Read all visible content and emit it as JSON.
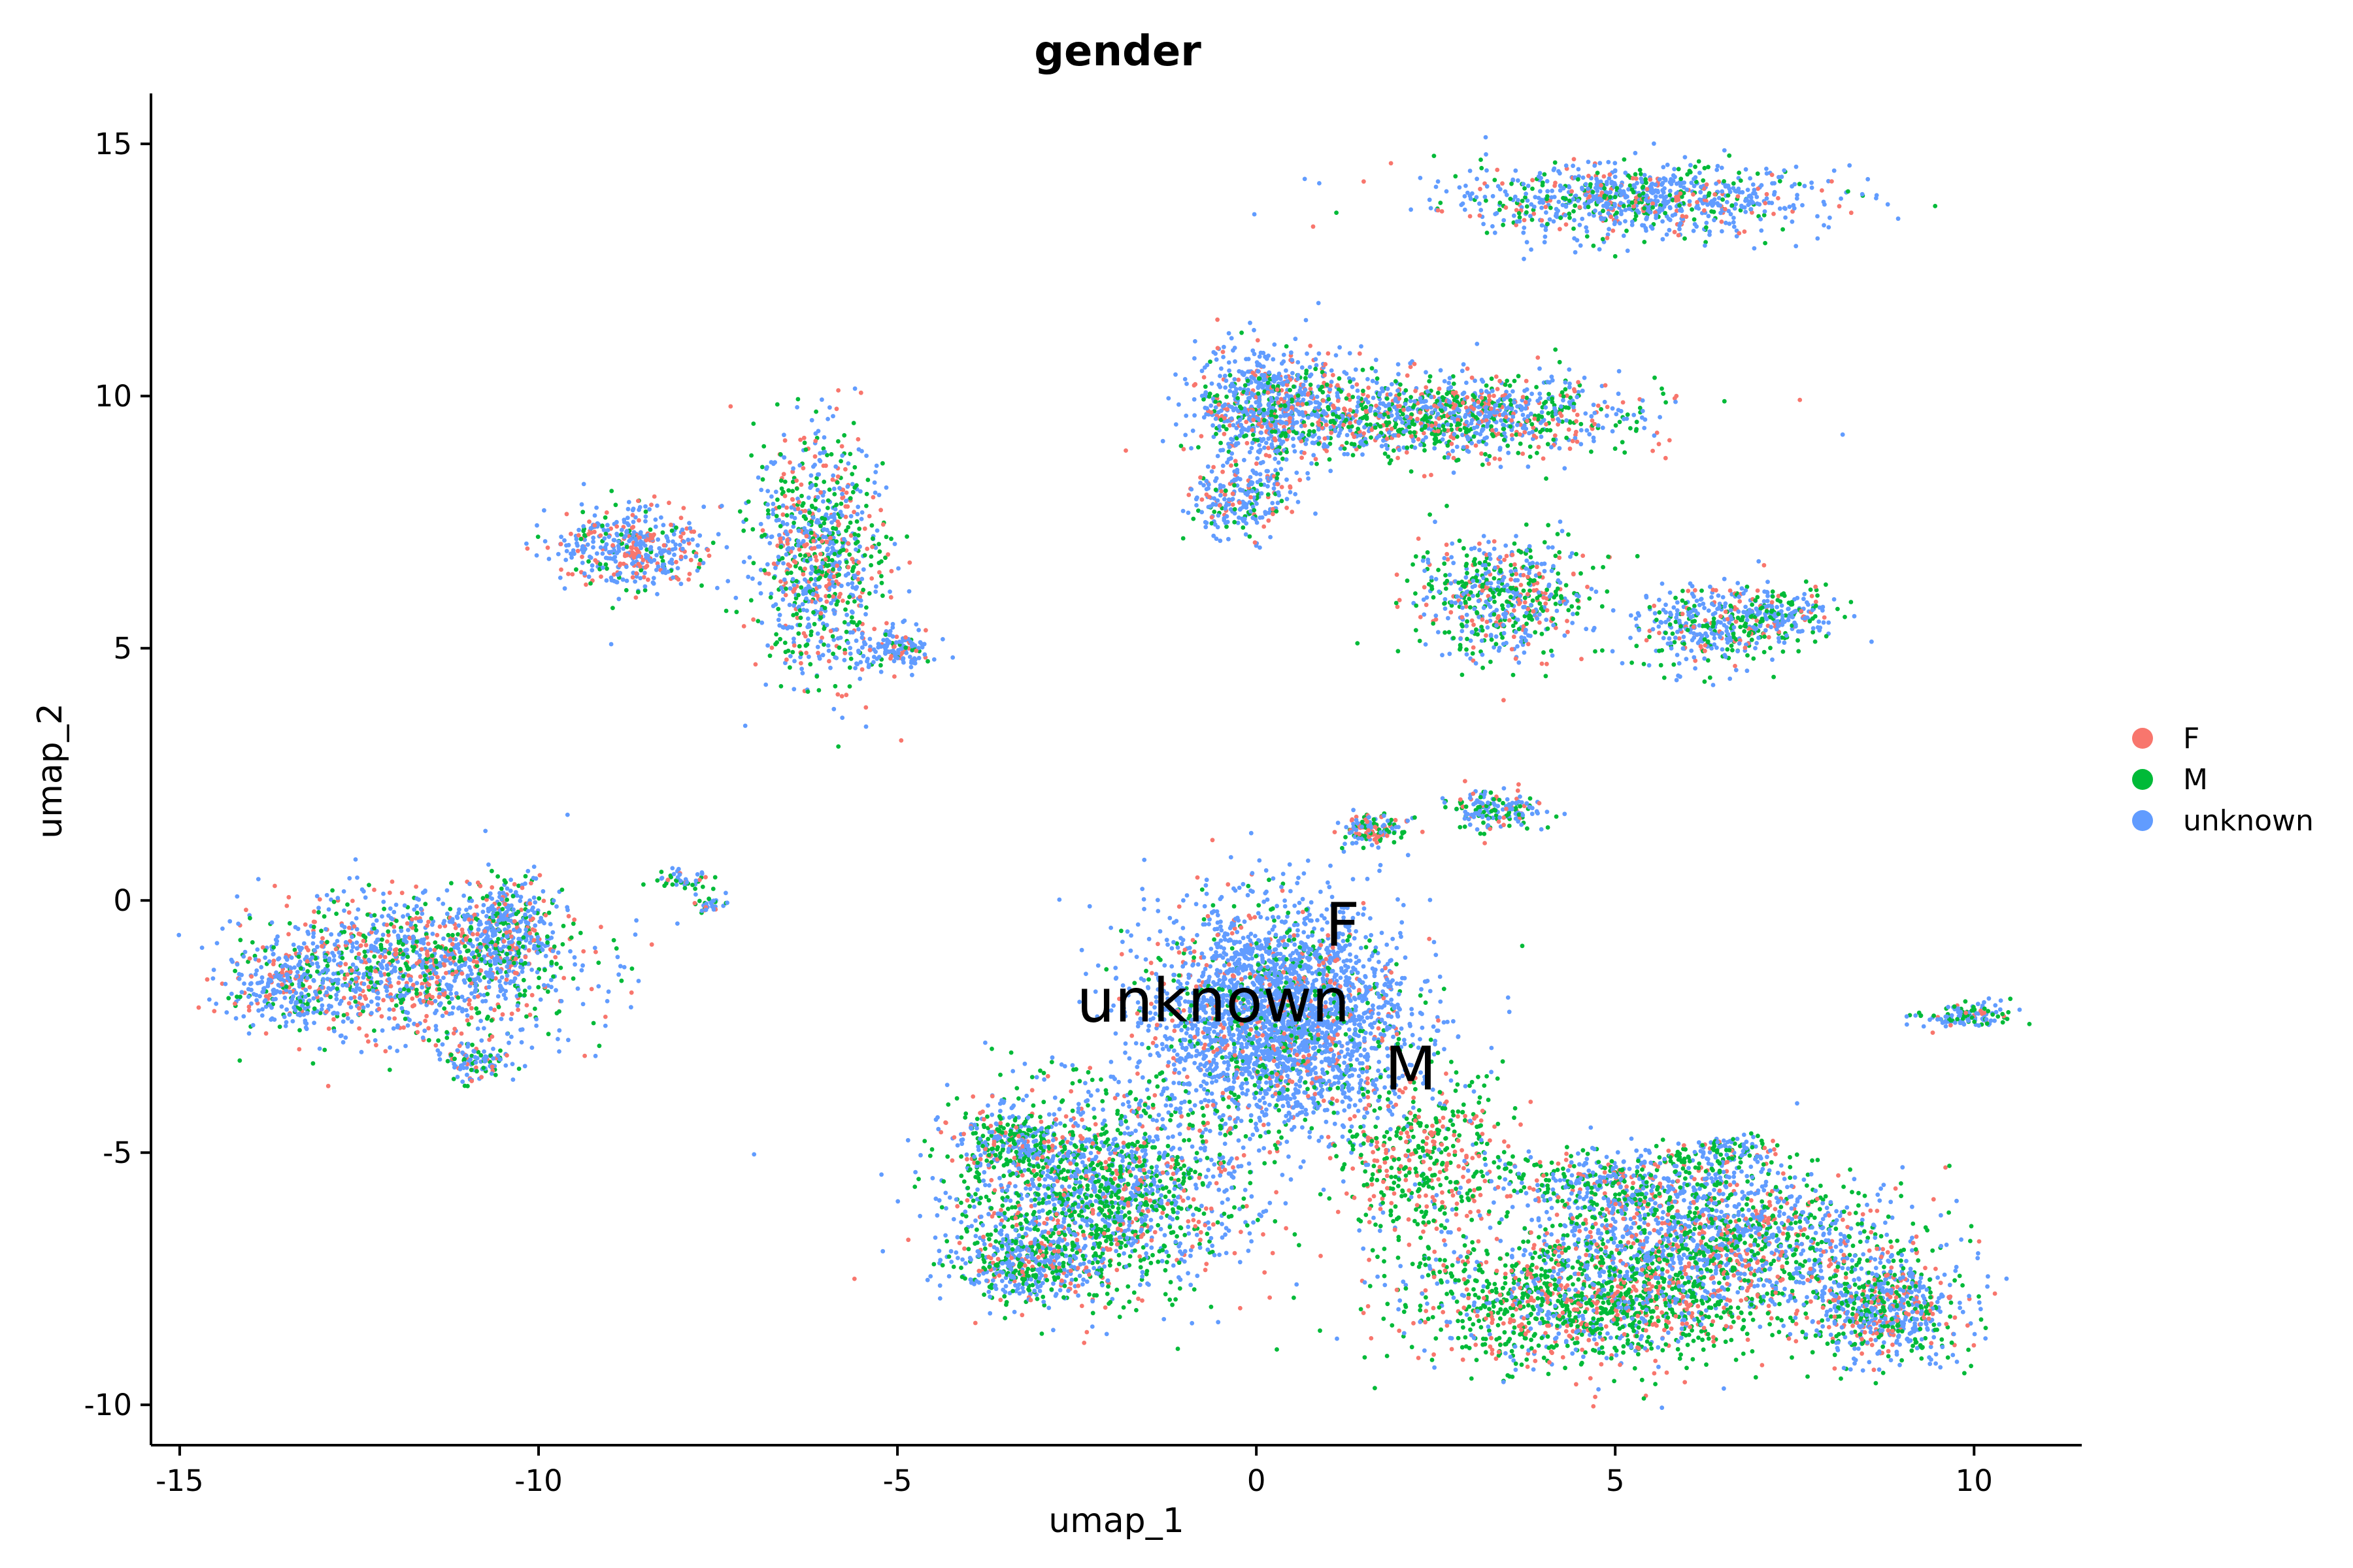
{
  "chart_data": {
    "type": "scatter",
    "title": "gender",
    "xlabel": "umap_1",
    "ylabel": "umap_2",
    "xlim": [
      -15.4,
      11.5
    ],
    "ylim": [
      -10.8,
      16.0
    ],
    "xticks": [
      -15,
      -10,
      -5,
      0,
      5,
      10
    ],
    "xtick_labels": [
      "-15",
      "-10",
      "-5",
      "0",
      "5",
      "10"
    ],
    "yticks": [
      -10,
      -5,
      0,
      5,
      10,
      15
    ],
    "ytick_labels": [
      "-10",
      "-5",
      "0",
      "5",
      "10",
      "15"
    ],
    "grid": false,
    "legend_position": "right",
    "series": [
      {
        "name": "F",
        "color": "#F8766D"
      },
      {
        "name": "M",
        "color": "#00BA38"
      },
      {
        "name": "unknown",
        "color": "#619CFF"
      }
    ],
    "annotations": [
      {
        "text": "F",
        "x": 1.2,
        "y": -0.9
      },
      {
        "text": "unknown",
        "x": -0.6,
        "y": -2.4
      },
      {
        "text": "M",
        "x": 2.15,
        "y": -3.75
      }
    ],
    "clusters": [
      {
        "cx": 5.2,
        "cy": 13.9,
        "sx": 1.3,
        "sy": 0.35,
        "n": 900,
        "mix": [
          0.15,
          0.2,
          0.65
        ]
      },
      {
        "cx": 0.2,
        "cy": 9.8,
        "sx": 0.5,
        "sy": 0.6,
        "n": 700,
        "mix": [
          0.2,
          0.15,
          0.65
        ]
      },
      {
        "cx": 2.6,
        "cy": 9.6,
        "sx": 1.3,
        "sy": 0.4,
        "n": 1200,
        "mix": [
          0.22,
          0.35,
          0.43
        ]
      },
      {
        "cx": -0.2,
        "cy": 8.0,
        "sx": 0.35,
        "sy": 0.4,
        "n": 250,
        "mix": [
          0.15,
          0.15,
          0.7
        ]
      },
      {
        "cx": 3.4,
        "cy": 6.0,
        "sx": 0.6,
        "sy": 0.6,
        "n": 600,
        "mix": [
          0.2,
          0.4,
          0.4
        ]
      },
      {
        "cx": 6.3,
        "cy": 5.4,
        "sx": 0.5,
        "sy": 0.4,
        "n": 350,
        "mix": [
          0.15,
          0.3,
          0.55
        ]
      },
      {
        "cx": 7.3,
        "cy": 5.7,
        "sx": 0.4,
        "sy": 0.25,
        "n": 200,
        "mix": [
          0.1,
          0.35,
          0.55
        ]
      },
      {
        "cx": -6.1,
        "cy": 6.8,
        "sx": 0.45,
        "sy": 1.2,
        "n": 900,
        "mix": [
          0.2,
          0.3,
          0.5
        ]
      },
      {
        "cx": -8.7,
        "cy": 7.0,
        "sx": 0.5,
        "sy": 0.4,
        "n": 450,
        "mix": [
          0.25,
          0.15,
          0.6
        ]
      },
      {
        "cx": -5.0,
        "cy": 5.0,
        "sx": 0.3,
        "sy": 0.2,
        "n": 150,
        "mix": [
          0.2,
          0.1,
          0.7
        ]
      },
      {
        "cx": -11.7,
        "cy": -1.3,
        "sx": 1.1,
        "sy": 0.7,
        "n": 1300,
        "mix": [
          0.25,
          0.25,
          0.5
        ]
      },
      {
        "cx": -13.5,
        "cy": -1.7,
        "sx": 0.4,
        "sy": 0.4,
        "n": 250,
        "mix": [
          0.15,
          0.15,
          0.7
        ]
      },
      {
        "cx": -10.4,
        "cy": -0.6,
        "sx": 0.3,
        "sy": 0.5,
        "n": 350,
        "mix": [
          0.15,
          0.2,
          0.65
        ]
      },
      {
        "cx": -10.9,
        "cy": -3.2,
        "sx": 0.25,
        "sy": 0.2,
        "n": 120,
        "mix": [
          0.2,
          0.2,
          0.6
        ]
      },
      {
        "cx": 0.3,
        "cy": -2.3,
        "sx": 0.9,
        "sy": 1.1,
        "n": 3000,
        "mix": [
          0.1,
          0.12,
          0.78
        ]
      },
      {
        "cx": -2.2,
        "cy": -5.8,
        "sx": 1.0,
        "sy": 1.0,
        "n": 1800,
        "mix": [
          0.15,
          0.4,
          0.45
        ]
      },
      {
        "cx": -3.4,
        "cy": -4.8,
        "sx": 0.35,
        "sy": 0.3,
        "n": 250,
        "mix": [
          0.15,
          0.45,
          0.4
        ]
      },
      {
        "cx": -3.2,
        "cy": -7.2,
        "sx": 0.5,
        "sy": 0.35,
        "n": 400,
        "mix": [
          0.15,
          0.35,
          0.5
        ]
      },
      {
        "cx": 2.3,
        "cy": -5.2,
        "sx": 0.6,
        "sy": 0.9,
        "n": 500,
        "mix": [
          0.3,
          0.6,
          0.1
        ]
      },
      {
        "cx": 4.6,
        "cy": -8.0,
        "sx": 1.3,
        "sy": 0.6,
        "n": 1400,
        "mix": [
          0.25,
          0.55,
          0.2
        ]
      },
      {
        "cx": 6.4,
        "cy": -6.7,
        "sx": 1.3,
        "sy": 0.7,
        "n": 1600,
        "mix": [
          0.18,
          0.32,
          0.5
        ]
      },
      {
        "cx": 8.8,
        "cy": -8.1,
        "sx": 0.5,
        "sy": 0.5,
        "n": 700,
        "mix": [
          0.2,
          0.3,
          0.5
        ]
      },
      {
        "cx": 5.0,
        "cy": -5.6,
        "sx": 0.8,
        "sy": 0.3,
        "n": 400,
        "mix": [
          0.15,
          0.3,
          0.55
        ]
      },
      {
        "cx": 6.5,
        "cy": -5.0,
        "sx": 0.35,
        "sy": 0.15,
        "n": 120,
        "mix": [
          0.1,
          0.45,
          0.45
        ]
      },
      {
        "cx": 1.6,
        "cy": 1.4,
        "sx": 0.25,
        "sy": 0.15,
        "n": 150,
        "mix": [
          0.25,
          0.35,
          0.4
        ]
      },
      {
        "cx": 3.3,
        "cy": 1.8,
        "sx": 0.35,
        "sy": 0.2,
        "n": 180,
        "mix": [
          0.15,
          0.3,
          0.55
        ]
      },
      {
        "cx": -8.0,
        "cy": 0.4,
        "sx": 0.25,
        "sy": 0.1,
        "n": 50,
        "mix": [
          0.2,
          0.3,
          0.5
        ]
      },
      {
        "cx": -7.6,
        "cy": -0.1,
        "sx": 0.15,
        "sy": 0.1,
        "n": 30,
        "mix": [
          0.2,
          0.3,
          0.5
        ]
      },
      {
        "cx": 9.9,
        "cy": -2.3,
        "sx": 0.3,
        "sy": 0.12,
        "n": 130,
        "mix": [
          0.1,
          0.4,
          0.5
        ]
      }
    ]
  }
}
